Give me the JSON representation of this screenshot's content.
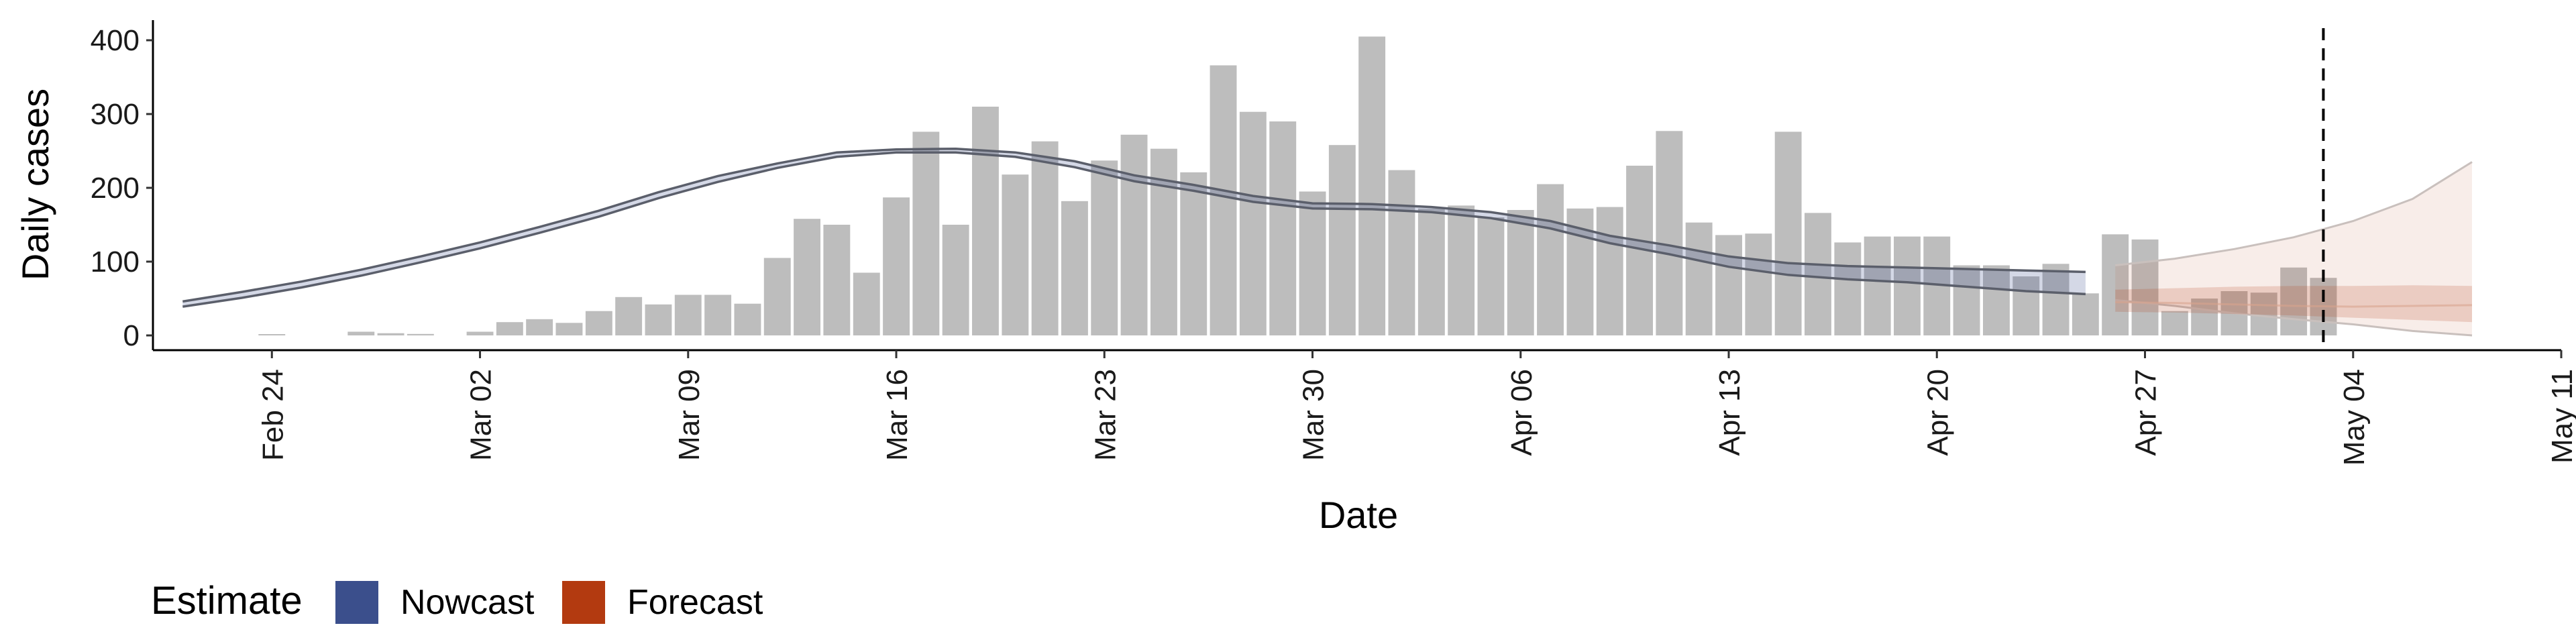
{
  "chart_data": {
    "type": "bar",
    "title": "",
    "xlabel": "Date",
    "ylabel": "Daily cases",
    "ylim": [
      0,
      420
    ],
    "yticks": [
      0,
      100,
      200,
      300,
      400
    ],
    "xlim": [
      "2020-02-20",
      "2020-05-11"
    ],
    "xticks": [
      {
        "date": "2020-02-24",
        "label": "Feb 24"
      },
      {
        "date": "2020-03-02",
        "label": "Mar 02"
      },
      {
        "date": "2020-03-09",
        "label": "Mar 09"
      },
      {
        "date": "2020-03-16",
        "label": "Mar 16"
      },
      {
        "date": "2020-03-23",
        "label": "Mar 23"
      },
      {
        "date": "2020-03-30",
        "label": "Mar 30"
      },
      {
        "date": "2020-04-06",
        "label": "Apr 06"
      },
      {
        "date": "2020-04-13",
        "label": "Apr 13"
      },
      {
        "date": "2020-04-20",
        "label": "Apr 20"
      },
      {
        "date": "2020-04-27",
        "label": "Apr 27"
      },
      {
        "date": "2020-05-04",
        "label": "May 04"
      },
      {
        "date": "2020-05-11",
        "label": "May 11"
      }
    ],
    "grid": false,
    "legend_position": "bottom-left",
    "bars": {
      "color": "#bdbdbd",
      "dates": [
        "2020-02-24",
        "2020-02-25",
        "2020-02-26",
        "2020-02-27",
        "2020-02-28",
        "2020-02-29",
        "2020-03-01",
        "2020-03-02",
        "2020-03-03",
        "2020-03-04",
        "2020-03-05",
        "2020-03-06",
        "2020-03-07",
        "2020-03-08",
        "2020-03-09",
        "2020-03-10",
        "2020-03-11",
        "2020-03-12",
        "2020-03-13",
        "2020-03-14",
        "2020-03-15",
        "2020-03-16",
        "2020-03-17",
        "2020-03-18",
        "2020-03-19",
        "2020-03-20",
        "2020-03-21",
        "2020-03-22",
        "2020-03-23",
        "2020-03-24",
        "2020-03-25",
        "2020-03-26",
        "2020-03-27",
        "2020-03-28",
        "2020-03-29",
        "2020-03-30",
        "2020-03-31",
        "2020-04-01",
        "2020-04-02",
        "2020-04-03",
        "2020-04-04",
        "2020-04-05",
        "2020-04-06",
        "2020-04-07",
        "2020-04-08",
        "2020-04-09",
        "2020-04-10",
        "2020-04-11",
        "2020-04-12",
        "2020-04-13",
        "2020-04-14",
        "2020-04-15",
        "2020-04-16",
        "2020-04-17",
        "2020-04-18",
        "2020-04-19",
        "2020-04-20",
        "2020-04-21",
        "2020-04-22",
        "2020-04-23",
        "2020-04-24",
        "2020-04-25",
        "2020-04-26",
        "2020-04-27",
        "2020-04-28",
        "2020-04-29",
        "2020-04-30",
        "2020-05-01",
        "2020-05-02",
        "2020-05-03"
      ],
      "values": [
        1,
        0,
        0,
        5,
        3,
        2,
        0,
        5,
        18,
        22,
        17,
        33,
        52,
        42,
        55,
        55,
        43,
        105,
        158,
        150,
        85,
        187,
        276,
        150,
        310,
        218,
        263,
        182,
        237,
        272,
        253,
        221,
        366,
        303,
        290,
        195,
        258,
        405,
        224,
        172,
        176,
        160,
        170,
        205,
        172,
        174,
        230,
        277,
        153,
        136,
        138,
        276,
        166,
        126,
        134,
        134,
        134,
        95,
        95,
        80,
        97,
        57,
        137,
        130,
        33,
        50,
        60,
        58,
        92,
        78
      ]
    },
    "series": [
      {
        "name": "Nowcast",
        "color": "#3b4f8c",
        "x": [
          "2020-02-21",
          "2020-02-23",
          "2020-02-25",
          "2020-02-27",
          "2020-02-29",
          "2020-03-02",
          "2020-03-04",
          "2020-03-06",
          "2020-03-08",
          "2020-03-10",
          "2020-03-12",
          "2020-03-14",
          "2020-03-16",
          "2020-03-18",
          "2020-03-20",
          "2020-03-22",
          "2020-03-24",
          "2020-03-26",
          "2020-03-28",
          "2020-03-30",
          "2020-04-01",
          "2020-04-03",
          "2020-04-05",
          "2020-04-07",
          "2020-04-09",
          "2020-04-11",
          "2020-04-13",
          "2020-04-15",
          "2020-04-17",
          "2020-04-19",
          "2020-04-21",
          "2020-04-23",
          "2020-04-25"
        ],
        "median": [
          42,
          55,
          69,
          85,
          103,
          122,
          143,
          165,
          190,
          212,
          230,
          245,
          250,
          250,
          245,
          232,
          213,
          200,
          185,
          175,
          174,
          170,
          163,
          150,
          130,
          116,
          100,
          90,
          85,
          82,
          78,
          74,
          70
        ],
        "lower": [
          39,
          51,
          65,
          81,
          99,
          118,
          139,
          161,
          186,
          208,
          227,
          242,
          248,
          248,
          242,
          228,
          209,
          196,
          181,
          172,
          171,
          167,
          159,
          145,
          125,
          110,
          93,
          82,
          76,
          72,
          66,
          60,
          56
        ],
        "upper": [
          46,
          59,
          73,
          89,
          107,
          126,
          147,
          169,
          194,
          216,
          233,
          248,
          252,
          253,
          248,
          236,
          217,
          204,
          189,
          179,
          178,
          174,
          167,
          155,
          135,
          122,
          107,
          98,
          94,
          92,
          90,
          88,
          86
        ]
      },
      {
        "name": "Forecast",
        "color": "#b33a10",
        "x": [
          "2020-04-26",
          "2020-04-28",
          "2020-04-30",
          "2020-05-02",
          "2020-05-04",
          "2020-05-06",
          "2020-05-08"
        ],
        "median": [
          45,
          44,
          42,
          40,
          39,
          40,
          41
        ],
        "inner_lower": [
          32,
          31,
          29,
          27,
          24,
          21,
          18
        ],
        "inner_upper": [
          62,
          64,
          66,
          67,
          67,
          68,
          67
        ],
        "outer_lower": [
          48,
          40,
          30,
          22,
          15,
          6,
          0
        ],
        "outer_upper": [
          95,
          104,
          117,
          133,
          155,
          185,
          235
        ]
      }
    ],
    "vline": {
      "date": "2020-05-03",
      "style": "dashed"
    },
    "legend": {
      "title": "Estimate",
      "items": [
        {
          "label": "Nowcast",
          "color": "#3b4f8c"
        },
        {
          "label": "Forecast",
          "color": "#b33a10"
        }
      ]
    }
  }
}
